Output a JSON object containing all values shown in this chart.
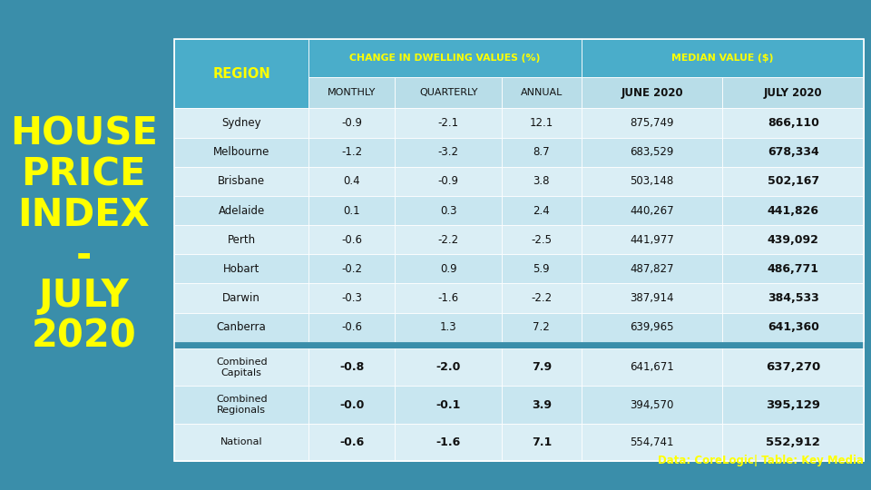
{
  "title_lines": [
    "HOUSE",
    "PRICE",
    "INDEX",
    "-",
    "JULY",
    "2020"
  ],
  "title_color": "#FFFF00",
  "bg_color": "#3a8eaa",
  "table_header_bg": "#4aadca",
  "table_subheader_bg": "#b8dde8",
  "row_bg_even": "#daeef5",
  "row_bg_odd": "#c8e6f0",
  "summary_gap_bg": "#3a8eaa",
  "col_group1_label": "CHANGE IN DWELLING VALUES (%)",
  "col_group2_label": "MEDIAN VALUE ($)",
  "subheader_cols": [
    "MONTHLY",
    "QUARTERLY",
    "ANNUAL",
    "JUNE 2020",
    "JULY 2020"
  ],
  "rows": [
    [
      "Sydney",
      "-0.9",
      "-2.1",
      "12.1",
      "875,749",
      "866,110"
    ],
    [
      "Melbourne",
      "-1.2",
      "-3.2",
      "8.7",
      "683,529",
      "678,334"
    ],
    [
      "Brisbane",
      "0.4",
      "-0.9",
      "3.8",
      "503,148",
      "502,167"
    ],
    [
      "Adelaide",
      "0.1",
      "0.3",
      "2.4",
      "440,267",
      "441,826"
    ],
    [
      "Perth",
      "-0.6",
      "-2.2",
      "-2.5",
      "441,977",
      "439,092"
    ],
    [
      "Hobart",
      "-0.2",
      "0.9",
      "5.9",
      "487,827",
      "486,771"
    ],
    [
      "Darwin",
      "-0.3",
      "-1.6",
      "-2.2",
      "387,914",
      "384,533"
    ],
    [
      "Canberra",
      "-0.6",
      "1.3",
      "7.2",
      "639,965",
      "641,360"
    ]
  ],
  "summary_rows": [
    [
      "Combined\nCapitals",
      "-0.8",
      "-2.0",
      "7.9",
      "641,671",
      "637,270"
    ],
    [
      "Combined\nRegionals",
      "-0.0",
      "-0.1",
      "3.9",
      "394,570",
      "395,129"
    ],
    [
      "National",
      "-0.6",
      "-1.6",
      "7.1",
      "554,741",
      "552,912"
    ]
  ],
  "footer": "Data: CoreLogic| Table: Key Media",
  "footer_color": "#FFFF00",
  "yellow": "#FFFF00",
  "white": "#FFFFFF",
  "black": "#111111",
  "dark_gray": "#333333"
}
